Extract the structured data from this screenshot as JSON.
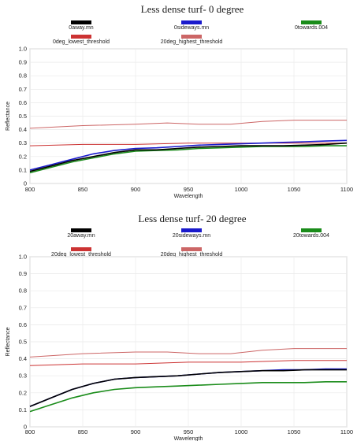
{
  "chart_data": [
    {
      "type": "line",
      "title": "Less dense turf- 0 degree",
      "xlabel": "Wavelength",
      "ylabel": "Reflectance",
      "xlim": [
        800,
        1100
      ],
      "ylim": [
        0,
        1.0
      ],
      "xticks": [
        800,
        850,
        900,
        950,
        1000,
        1050,
        1100
      ],
      "yticks": [
        0,
        0.1,
        0.2,
        0.3,
        0.4,
        0.5,
        0.6,
        0.7,
        0.8,
        0.9,
        1.0
      ],
      "legend_position": "top",
      "series": [
        {
          "name": "0away.mn",
          "color": "#000000",
          "x": [
            800,
            820,
            840,
            860,
            880,
            900,
            920,
            940,
            960,
            980,
            1000,
            1020,
            1040,
            1060,
            1080,
            1100
          ],
          "y": [
            0.09,
            0.13,
            0.17,
            0.2,
            0.23,
            0.25,
            0.25,
            0.26,
            0.27,
            0.275,
            0.28,
            0.28,
            0.28,
            0.285,
            0.29,
            0.3
          ]
        },
        {
          "name": "0sideways.mn",
          "color": "#1a1acc",
          "x": [
            800,
            820,
            840,
            860,
            880,
            900,
            920,
            940,
            960,
            980,
            1000,
            1020,
            1040,
            1060,
            1080,
            1100
          ],
          "y": [
            0.1,
            0.14,
            0.18,
            0.22,
            0.245,
            0.26,
            0.265,
            0.275,
            0.285,
            0.29,
            0.295,
            0.3,
            0.305,
            0.31,
            0.315,
            0.32
          ]
        },
        {
          "name": "0towards.004",
          "color": "#1a8c1a",
          "x": [
            800,
            820,
            840,
            860,
            880,
            900,
            920,
            940,
            960,
            980,
            1000,
            1020,
            1040,
            1060,
            1080,
            1100
          ],
          "y": [
            0.08,
            0.12,
            0.16,
            0.19,
            0.22,
            0.24,
            0.245,
            0.25,
            0.26,
            0.265,
            0.27,
            0.275,
            0.275,
            0.275,
            0.28,
            0.28
          ]
        },
        {
          "name": "0deg_lowest_threshold",
          "color": "#cc3333",
          "x": [
            800,
            850,
            900,
            950,
            1000,
            1050,
            1100
          ],
          "y": [
            0.28,
            0.29,
            0.29,
            0.3,
            0.3,
            0.3,
            0.3
          ]
        },
        {
          "name": "20deg_highest_threshold",
          "color": "#cc6666",
          "x": [
            800,
            850,
            900,
            930,
            960,
            990,
            1020,
            1050,
            1080,
            1100
          ],
          "y": [
            0.41,
            0.43,
            0.44,
            0.45,
            0.44,
            0.44,
            0.46,
            0.47,
            0.47,
            0.47
          ]
        }
      ]
    },
    {
      "type": "line",
      "title": "Less dense turf- 20 degree",
      "xlabel": "Wavelength",
      "ylabel": "Reflectance",
      "xlim": [
        800,
        1100
      ],
      "ylim": [
        0,
        1.0
      ],
      "xticks": [
        800,
        850,
        900,
        950,
        1000,
        1050,
        1100
      ],
      "yticks": [
        0,
        0.1,
        0.2,
        0.3,
        0.4,
        0.5,
        0.6,
        0.7,
        0.8,
        0.9,
        1.0
      ],
      "legend_position": "top",
      "series": [
        {
          "name": "20away.mn",
          "color": "#000000",
          "x": [
            800,
            820,
            840,
            860,
            880,
            900,
            920,
            940,
            960,
            980,
            1000,
            1020,
            1040,
            1060,
            1080,
            1100
          ],
          "y": [
            0.12,
            0.17,
            0.22,
            0.255,
            0.28,
            0.29,
            0.295,
            0.3,
            0.31,
            0.32,
            0.325,
            0.33,
            0.33,
            0.335,
            0.335,
            0.335
          ]
        },
        {
          "name": "20sideways.mn",
          "color": "#1a1acc",
          "x": [
            800,
            820,
            840,
            860,
            880,
            900,
            920,
            940,
            960,
            980,
            1000,
            1020,
            1040,
            1060,
            1080,
            1100
          ],
          "y": [
            0.12,
            0.17,
            0.22,
            0.255,
            0.28,
            0.29,
            0.295,
            0.3,
            0.31,
            0.32,
            0.325,
            0.33,
            0.335,
            0.335,
            0.34,
            0.34
          ]
        },
        {
          "name": "20towards.004",
          "color": "#1a8c1a",
          "x": [
            800,
            820,
            840,
            860,
            880,
            900,
            920,
            940,
            960,
            980,
            1000,
            1020,
            1040,
            1060,
            1080,
            1100
          ],
          "y": [
            0.09,
            0.13,
            0.17,
            0.2,
            0.22,
            0.23,
            0.235,
            0.24,
            0.245,
            0.25,
            0.255,
            0.26,
            0.26,
            0.26,
            0.265,
            0.265
          ]
        },
        {
          "name": "20deg_lowest_threshold",
          "color": "#cc3333",
          "x": [
            800,
            850,
            900,
            950,
            1000,
            1050,
            1100
          ],
          "y": [
            0.36,
            0.37,
            0.37,
            0.38,
            0.38,
            0.39,
            0.39
          ]
        },
        {
          "name": "20deg_highest_threshold",
          "color": "#cc6666",
          "x": [
            800,
            850,
            900,
            930,
            960,
            990,
            1020,
            1050,
            1080,
            1100
          ],
          "y": [
            0.41,
            0.43,
            0.44,
            0.44,
            0.43,
            0.43,
            0.45,
            0.46,
            0.46,
            0.46
          ]
        }
      ]
    }
  ]
}
